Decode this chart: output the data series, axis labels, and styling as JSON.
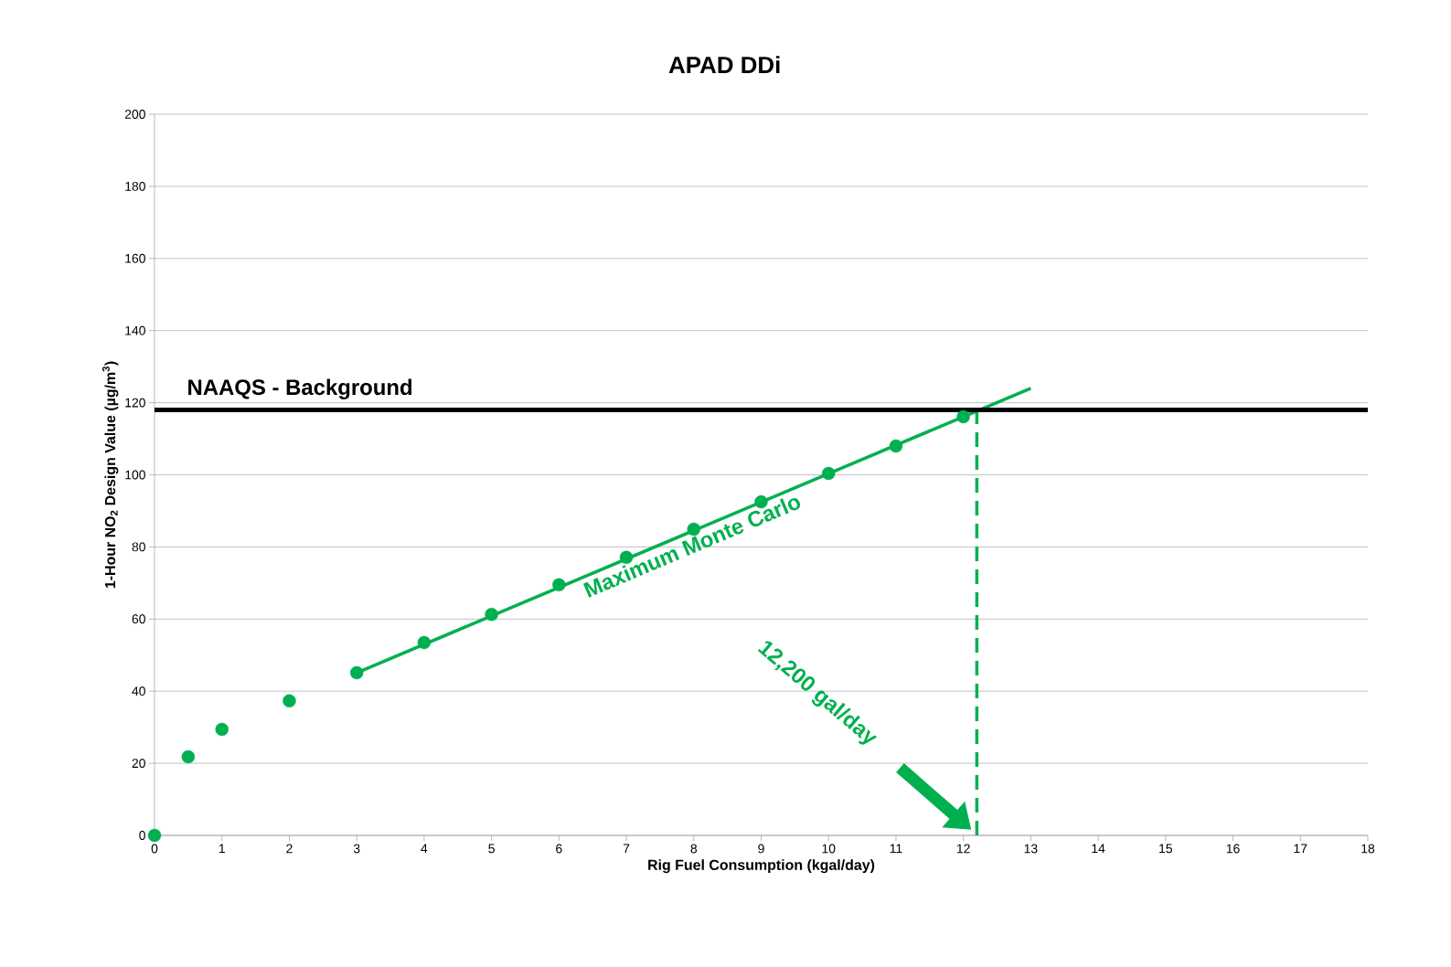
{
  "chart_data": {
    "type": "scatter",
    "title": "APAD DDi",
    "xlabel": "Rig Fuel Consumption (kgal/day)",
    "ylabel": "1-Hour NO$_{2}$ Design Value (µg/m$^{3}$)",
    "xlim": [
      0,
      18
    ],
    "ylim": [
      0,
      200
    ],
    "xticks": [
      0,
      1,
      2,
      3,
      4,
      5,
      6,
      7,
      8,
      9,
      10,
      11,
      12,
      13,
      14,
      15,
      16,
      17,
      18
    ],
    "yticks": [
      0,
      20,
      40,
      60,
      80,
      100,
      120,
      140,
      160,
      180,
      200
    ],
    "grid": "y",
    "marker": "circle",
    "series": [
      {
        "color": "#00b050",
        "x": [
          0,
          0.5,
          1,
          2,
          3,
          4,
          5,
          6,
          7,
          8,
          9,
          10,
          11,
          12
        ],
        "values": [
          0,
          21.8,
          29.4,
          37.3,
          45.1,
          53.5,
          61.3,
          69.5,
          77.1,
          84.9,
          92.5,
          100.4,
          108,
          116.1
        ]
      },
      {
        "type": "line",
        "color": "#00b050",
        "marker": "none",
        "x": [
          3,
          13
        ],
        "values": [
          45.1,
          124
        ]
      },
      {
        "type": "line",
        "color": "#00b050",
        "marker": "none",
        "line_style": "dashed",
        "x": [
          12.2,
          12.2
        ],
        "values": [
          0,
          118
        ]
      }
    ],
    "ref_lines": [
      {
        "axis": "y",
        "value": 118,
        "label": "NAAQS  - Background",
        "color": "#000000"
      }
    ],
    "annotations": [
      "Maximum Monte Carlo",
      "12,200 gal/day"
    ]
  }
}
